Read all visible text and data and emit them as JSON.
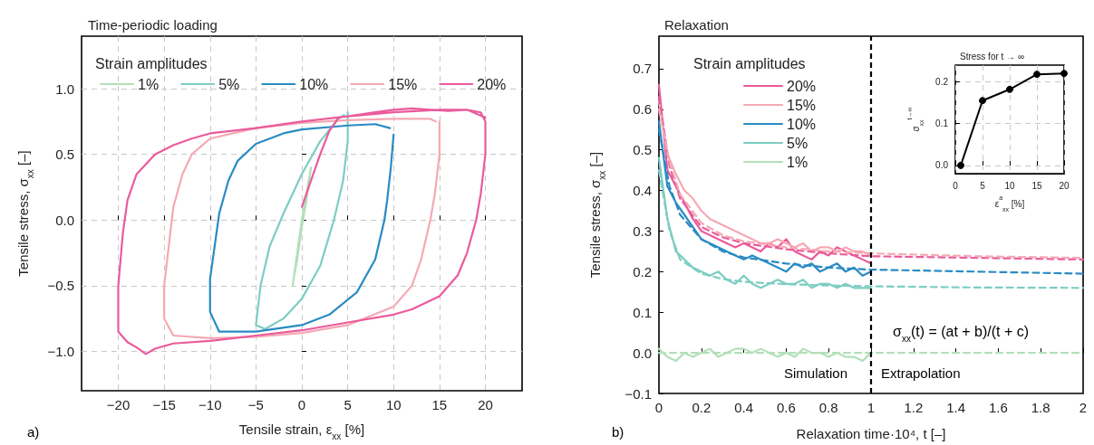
{
  "chart_data": [
    {
      "type": "line",
      "title": "Time-periodic loading",
      "xlabel": "Tensile strain, ε$_{xx}$ [%]",
      "ylabel": "Tensile stress, σ$_{xx}$ [–]",
      "legend_title": "Strain amplitudes",
      "legend": "top",
      "grid": true,
      "annotations": [
        "a)"
      ],
      "xlim": [
        -24,
        24
      ],
      "xticks": [
        {
          "value": -20,
          "label": "−20"
        },
        {
          "value": -15,
          "label": "−15"
        },
        {
          "value": -10,
          "label": "−10"
        },
        {
          "value": -5,
          "label": "−5"
        },
        0,
        5,
        10,
        15,
        20
      ],
      "ylim": [
        -1.3,
        1.4
      ],
      "yticks": [
        {
          "value": -1,
          "label": "−1.0"
        },
        {
          "value": -0.5,
          "label": "−0.5"
        },
        {
          "value": 0,
          "label": "0.0"
        },
        {
          "value": 0.5,
          "label": "0.5"
        },
        {
          "value": 1,
          "label": "1.0"
        }
      ],
      "series": [
        {
          "name": "1%",
          "color": "#b3dfb9",
          "x": [
            -1,
            -0.5,
            0,
            0.5,
            1,
            0.5,
            0,
            -0.5,
            -0.9
          ],
          "values": [
            -0.5,
            -0.25,
            0,
            0.2,
            0.4,
            0.15,
            -0.05,
            -0.3,
            -0.45
          ]
        },
        {
          "name": "5%",
          "color": "#7dcdc3",
          "x": [
            5,
            5,
            4.5,
            3.5,
            2,
            0,
            -2,
            -4,
            -5,
            -4.5,
            -3.5,
            -2,
            0,
            2,
            4,
            4.6
          ],
          "values": [
            0.82,
            0.6,
            0.3,
            0,
            -0.35,
            -0.6,
            -0.75,
            -0.83,
            -0.8,
            -0.5,
            -0.2,
            0.05,
            0.35,
            0.6,
            0.77,
            0.8
          ]
        },
        {
          "name": "10%",
          "color": "#2a8bc3",
          "x": [
            10,
            9.7,
            9.3,
            9,
            8,
            6,
            3,
            0,
            -5,
            -9,
            -10,
            -10,
            -9.5,
            -9,
            -8,
            -7,
            -5,
            -2,
            0,
            5,
            8,
            9.6
          ],
          "values": [
            0.65,
            0.4,
            0.15,
            0,
            -0.3,
            -0.55,
            -0.72,
            -0.8,
            -0.85,
            -0.85,
            -0.7,
            -0.45,
            -0.2,
            0.05,
            0.3,
            0.45,
            0.58,
            0.66,
            0.69,
            0.72,
            0.73,
            0.7
          ]
        },
        {
          "name": "15%",
          "color": "#f5a9b4",
          "x": [
            15,
            15,
            14.5,
            14,
            13,
            12,
            10,
            5,
            0,
            -5,
            -10,
            -14,
            -15,
            -15,
            -14.5,
            -14,
            -13,
            -12,
            -10,
            -5,
            0,
            5,
            10,
            14,
            14.6
          ],
          "values": [
            0.75,
            0.5,
            0.2,
            0,
            -0.3,
            -0.5,
            -0.66,
            -0.8,
            -0.86,
            -0.89,
            -0.9,
            -0.88,
            -0.75,
            -0.5,
            -0.2,
            0.1,
            0.35,
            0.5,
            0.62,
            0.7,
            0.74,
            0.76,
            0.77,
            0.77,
            0.75
          ]
        },
        {
          "name": "20%",
          "color": "#ea5b9c",
          "x": [
            0,
            1,
            2,
            3,
            4,
            6,
            8,
            10,
            12,
            14,
            16,
            18,
            19.5,
            20,
            20,
            19.5,
            19,
            18,
            17,
            15,
            12,
            10,
            5,
            0,
            -5,
            -10,
            -14,
            -16,
            -17,
            -18,
            -19,
            -20,
            -20,
            -19.5,
            -19,
            -18,
            -16,
            -14,
            -12,
            -10,
            -5,
            0,
            5,
            10,
            15,
            18,
            20
          ],
          "values": [
            0.1,
            0.3,
            0.5,
            0.68,
            0.78,
            0.8,
            0.82,
            0.84,
            0.85,
            0.84,
            0.83,
            0.84,
            0.82,
            0.75,
            0.5,
            0.2,
            0,
            -0.25,
            -0.42,
            -0.58,
            -0.68,
            -0.72,
            -0.78,
            -0.84,
            -0.88,
            -0.92,
            -0.94,
            -0.98,
            -1.02,
            -0.97,
            -0.93,
            -0.85,
            -0.5,
            -0.1,
            0.15,
            0.35,
            0.5,
            0.57,
            0.62,
            0.66,
            0.7,
            0.75,
            0.79,
            0.82,
            0.84,
            0.84,
            0.78
          ]
        }
      ]
    },
    {
      "type": "line",
      "title": "Relaxation",
      "xlabel": "Relaxation time·10⁴, t [–]",
      "ylabel": "Tensile stress, σ$_{xx}$ [–]",
      "legend_title": "Strain amplitudes",
      "legend": "top left",
      "annotations": [
        "b)",
        "σ$_{xx}$(t) = (at + b)/(t + c)",
        "Simulation",
        "Extrapolation"
      ],
      "xlim": [
        0,
        2
      ],
      "xticks": [
        0,
        0.2,
        0.4,
        0.6,
        0.8,
        1,
        1.2,
        1.4,
        1.6,
        1.8,
        2
      ],
      "ylim": [
        -0.1,
        0.78
      ],
      "yticks": [
        {
          "value": -0.1,
          "label": "−0.1"
        },
        {
          "value": 0,
          "label": "0.0"
        },
        0.1,
        0.2,
        0.3,
        0.4,
        0.5,
        0.6,
        0.7
      ],
      "ref_lines": [
        {
          "axis": "x",
          "value": 1,
          "color": "#000000",
          "line_style": "dashed"
        }
      ],
      "x": [
        0,
        0.04,
        0.08,
        0.12,
        0.16,
        0.2,
        0.24,
        0.28,
        0.32,
        0.36,
        0.4,
        0.44,
        0.48,
        0.52,
        0.56,
        0.6,
        0.64,
        0.68,
        0.72,
        0.76,
        0.8,
        0.84,
        0.88,
        0.92,
        0.96,
        1
      ],
      "series": [
        {
          "name": "20%",
          "color": "#ea5b9c",
          "values": [
            0.66,
            0.45,
            0.41,
            0.37,
            0.33,
            0.3,
            0.29,
            0.28,
            0.27,
            0.26,
            0.27,
            0.26,
            0.25,
            0.27,
            0.26,
            0.28,
            0.25,
            0.24,
            0.23,
            0.25,
            0.24,
            0.26,
            0.25,
            0.24,
            0.23,
            0.22
          ]
        },
        {
          "name": "15%",
          "color": "#f5a9b4",
          "values": [
            0.62,
            0.49,
            0.44,
            0.4,
            0.38,
            0.35,
            0.33,
            0.32,
            0.31,
            0.3,
            0.29,
            0.28,
            0.27,
            0.27,
            0.28,
            0.27,
            0.26,
            0.27,
            0.25,
            0.26,
            0.26,
            0.25,
            0.26,
            0.25,
            0.25,
            0.24
          ]
        },
        {
          "name": "10%",
          "color": "#2a8bc3",
          "values": [
            0.57,
            0.41,
            0.37,
            0.34,
            0.31,
            0.28,
            0.27,
            0.26,
            0.25,
            0.24,
            0.23,
            0.24,
            0.23,
            0.22,
            0.21,
            0.2,
            0.22,
            0.21,
            0.22,
            0.2,
            0.21,
            0.22,
            0.2,
            0.21,
            0.19,
            0.2
          ]
        },
        {
          "name": "5%",
          "color": "#7dcdc3",
          "values": [
            0.48,
            0.33,
            0.25,
            0.23,
            0.21,
            0.2,
            0.19,
            0.2,
            0.18,
            0.17,
            0.19,
            0.17,
            0.16,
            0.17,
            0.18,
            0.17,
            0.17,
            0.18,
            0.16,
            0.17,
            0.17,
            0.16,
            0.17,
            0.16,
            0.16,
            0.16
          ]
        },
        {
          "name": "1%",
          "color": "#b3dfb9",
          "values": [
            0.01,
            -0.01,
            -0.02,
            0,
            -0.01,
            0,
            0.01,
            -0.01,
            0,
            0.01,
            0.01,
            0,
            0.01,
            0,
            -0.01,
            0,
            -0.01,
            0.01,
            0,
            0,
            -0.01,
            0,
            -0.01,
            -0.01,
            -0.02,
            0
          ]
        },
        {
          "color": "#ea5b9c",
          "line_style": "dashed",
          "x": [
            0,
            0.05,
            0.1,
            0.2,
            0.3,
            0.4,
            0.6,
            0.8,
            1,
            1.5,
            2
          ],
          "values": [
            0.63,
            0.46,
            0.38,
            0.31,
            0.285,
            0.27,
            0.255,
            0.245,
            0.238,
            0.234,
            0.23
          ]
        },
        {
          "color": "#f5a9b4",
          "line_style": "dashed",
          "x": [
            0,
            0.05,
            0.1,
            0.2,
            0.3,
            0.4,
            0.6,
            0.8,
            1,
            1.5,
            2
          ],
          "values": [
            0.6,
            0.47,
            0.39,
            0.32,
            0.29,
            0.275,
            0.26,
            0.25,
            0.245,
            0.238,
            0.234
          ]
        },
        {
          "color": "#2a8bc3",
          "line_style": "dashed",
          "x": [
            0,
            0.05,
            0.1,
            0.2,
            0.3,
            0.4,
            0.6,
            0.8,
            1,
            1.5,
            2
          ],
          "values": [
            0.55,
            0.41,
            0.34,
            0.28,
            0.25,
            0.235,
            0.22,
            0.21,
            0.205,
            0.2,
            0.195
          ]
        },
        {
          "color": "#7dcdc3",
          "line_style": "dashed",
          "x": [
            0,
            0.05,
            0.1,
            0.2,
            0.3,
            0.4,
            0.6,
            0.8,
            1,
            1.5,
            2
          ],
          "values": [
            0.45,
            0.3,
            0.23,
            0.195,
            0.182,
            0.175,
            0.169,
            0.166,
            0.164,
            0.161,
            0.16
          ]
        },
        {
          "color": "#b3dfb9",
          "line_style": "dashed",
          "x": [
            0,
            2
          ],
          "values": [
            0,
            0
          ]
        }
      ]
    },
    {
      "type": "line",
      "title": "Stress for t → ∞",
      "xlabel": "ε$^{a}$$_{xx}$ [%]",
      "ylabel": "σ$_{xx}$$^{t→∞}$",
      "grid": true,
      "marker": "circle",
      "xlim": [
        0,
        20
      ],
      "xticks": [
        0,
        5,
        10,
        15,
        20
      ],
      "ylim": [
        -0.02,
        0.24
      ],
      "yticks": [
        {
          "value": 0,
          "label": "0.0"
        },
        0.1,
        0.2
      ],
      "x": [
        1,
        5,
        10,
        15,
        20
      ],
      "series": [
        {
          "color": "#000000",
          "values": [
            0,
            0.155,
            0.182,
            0.218,
            0.22
          ]
        }
      ]
    }
  ]
}
